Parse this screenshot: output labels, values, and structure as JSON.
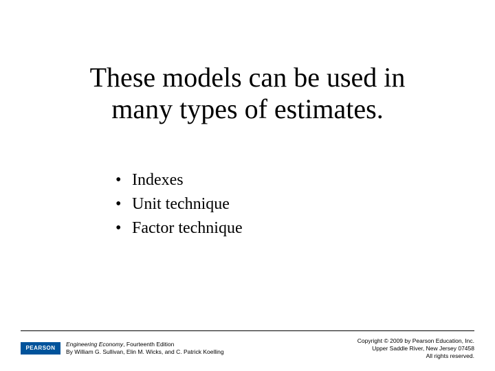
{
  "title_line1": "These models can be used in",
  "title_line2": "many types of estimates.",
  "bullets": {
    "item1": "Indexes",
    "item2": "Unit technique",
    "item3": "Factor technique"
  },
  "footer": {
    "logo_text": "PEARSON",
    "book_title": "Engineering Economy",
    "book_edition": ", Fourteenth Edition",
    "authors": "By William G. Sullivan, Elin M. Wicks, and C. Patrick Koelling",
    "copyright_line1": "Copyright © 2009 by Pearson Education, Inc.",
    "copyright_line2": "Upper Saddle River, New Jersey 07458",
    "copyright_line3": "All rights reserved."
  }
}
